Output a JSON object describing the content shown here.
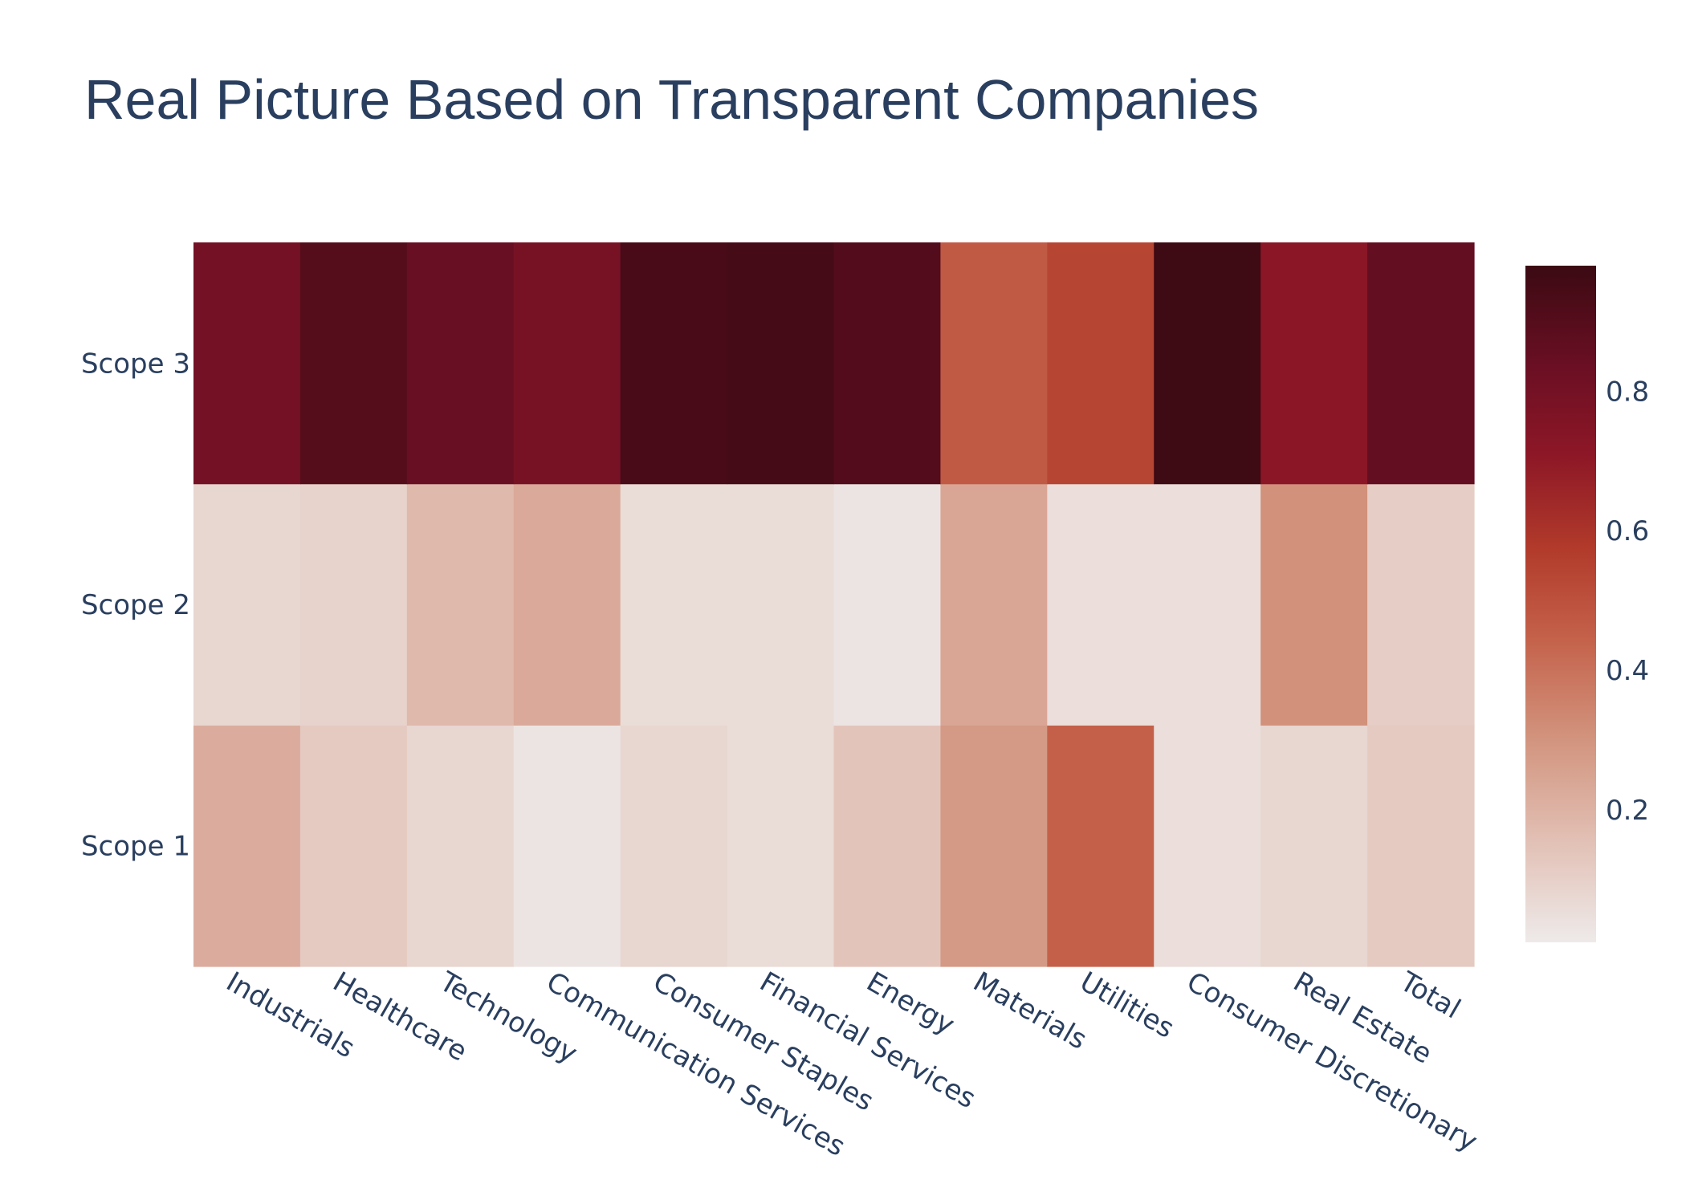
{
  "chart_data": {
    "type": "heatmap",
    "title": "Real Picture Based on Transparent Companies",
    "x": [
      "Industrials",
      "Healthcare",
      "Technology",
      "Communication Services",
      "Consumer Staples",
      "Financial Services",
      "Energy",
      "Materials",
      "Utilities",
      "Consumer Discretionary",
      "Real Estate",
      "Total"
    ],
    "y": [
      "Scope 1",
      "Scope 2",
      "Scope 3"
    ],
    "z": [
      [
        0.22,
        0.12,
        0.08,
        0.03,
        0.08,
        0.06,
        0.14,
        0.28,
        0.45,
        0.05,
        0.08,
        0.12
      ],
      [
        0.08,
        0.09,
        0.18,
        0.23,
        0.06,
        0.06,
        0.03,
        0.24,
        0.05,
        0.05,
        0.31,
        0.11
      ],
      [
        0.8,
        0.9,
        0.84,
        0.79,
        0.94,
        0.95,
        0.91,
        0.47,
        0.54,
        0.97,
        0.72,
        0.86
      ]
    ],
    "colorscale": [
      [
        0.0,
        "#eeeae9"
      ],
      [
        0.15,
        "#e2c0b5"
      ],
      [
        0.3,
        "#d2947e"
      ],
      [
        0.45,
        "#c4614a"
      ],
      [
        0.58,
        "#b23b2b"
      ],
      [
        0.72,
        "#8d1726"
      ],
      [
        0.85,
        "#6b0f24"
      ],
      [
        1.0,
        "#3b0a12"
      ]
    ],
    "zmin": 0.01,
    "zmax": 0.98,
    "colorbar": {
      "ticks": [
        0.2,
        0.4,
        0.6,
        0.8
      ],
      "tick_labels": [
        "0.2",
        "0.4",
        "0.6",
        "0.8"
      ]
    }
  }
}
